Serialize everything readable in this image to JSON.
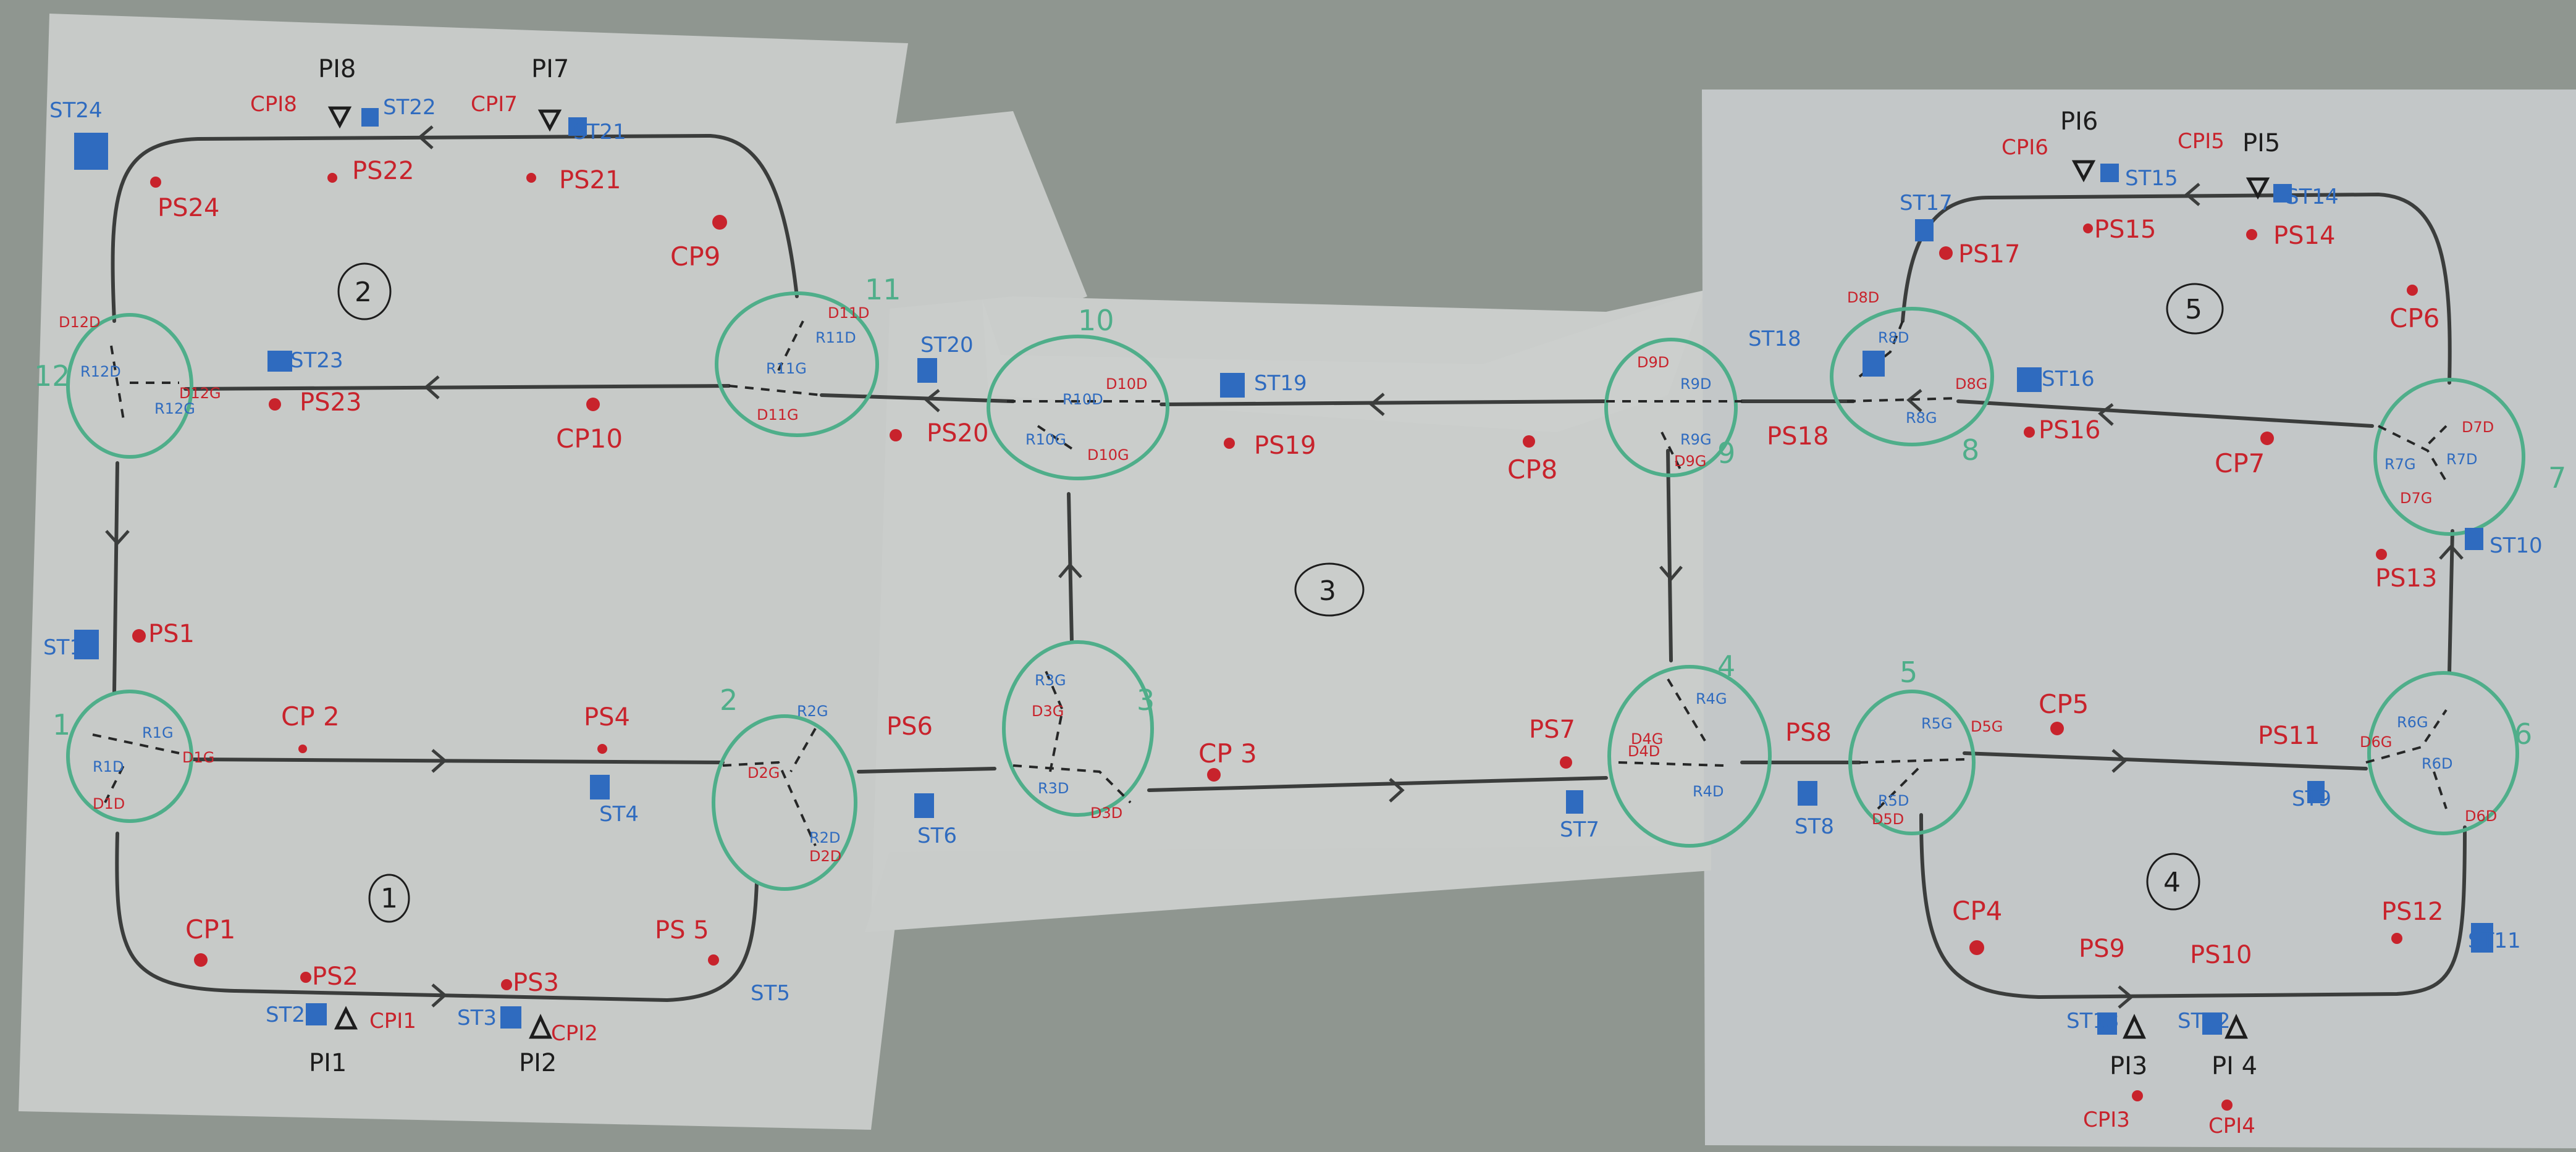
{
  "colors": {
    "background": "#8f9690",
    "paper": "#c8cbc9",
    "track": "#3b3d3c",
    "node": "#4fae8a",
    "red": "#c8232c",
    "blue": "#2f6bbf",
    "black": "#1d1d1d"
  },
  "zones": [
    "1",
    "2",
    "3",
    "4",
    "5"
  ],
  "nodes": [
    "1",
    "2",
    "3",
    "4",
    "5",
    "6",
    "7",
    "8",
    "9",
    "10",
    "11",
    "12"
  ],
  "points": {
    "CP": [
      "CP1",
      "CP 2",
      "CP 3",
      "CP4",
      "CP5",
      "CP6",
      "CP7",
      "CP8",
      "CP9",
      "CP10"
    ],
    "PS": [
      "PS1",
      "PS2",
      "PS3",
      "PS4",
      "PS 5",
      "PS6",
      "PS7",
      "PS8",
      "PS9",
      "PS10",
      "PS11",
      "PS12",
      "PS13",
      "PS14",
      "PS15",
      "PS16",
      "PS17",
      "PS18",
      "PS19",
      "PS20",
      "PS21",
      "PS22",
      "PS23",
      "PS24"
    ],
    "ST": [
      "ST1",
      "ST2",
      "ST3",
      "ST4",
      "ST5",
      "ST6",
      "ST7",
      "ST8",
      "ST9",
      "ST10",
      "ST11",
      "ST12",
      "ST13",
      "ST14",
      "ST15",
      "ST16",
      "ST17",
      "ST18",
      "ST19",
      "ST20",
      "ST21",
      "ST22",
      "ST23",
      "ST24"
    ],
    "PI": [
      "PI1",
      "PI2",
      "PI3",
      "PI 4",
      "PI5",
      "PI6",
      "PI7",
      "PI8"
    ],
    "CPI": [
      "CPI1",
      "CPI2",
      "CPI3",
      "CPI4",
      "CPI5",
      "CPI6",
      "CPI7",
      "CPI8"
    ]
  },
  "junction_labels": {
    "n1": [
      "D1G",
      "R1G",
      "R1D",
      "D1D"
    ],
    "n2": [
      "R2G",
      "D2G",
      "R2D",
      "D2D"
    ],
    "n3": [
      "R3G",
      "D3G",
      "R3D",
      "D3D"
    ],
    "n4": [
      "D4G",
      "R4G",
      "R4D",
      "D4D"
    ],
    "n5": [
      "R5G",
      "D5G",
      "R5D",
      "D5D"
    ],
    "n6": [
      "D6G",
      "R6G",
      "R6D",
      "D6D"
    ],
    "n7": [
      "D7D",
      "R7D",
      "R7G",
      "D7G"
    ],
    "n8": [
      "D8D",
      "R8D",
      "D8G",
      "R8G"
    ],
    "n9": [
      "D9D",
      "R9D",
      "R9G",
      "D9G"
    ],
    "n10": [
      "D10D",
      "R10D",
      "R10G",
      "D10G"
    ],
    "n11": [
      "D11D",
      "R11D",
      "R11G",
      "D11G"
    ],
    "n12": [
      "D12D",
      "R12D",
      "R12G",
      "D12G"
    ]
  }
}
